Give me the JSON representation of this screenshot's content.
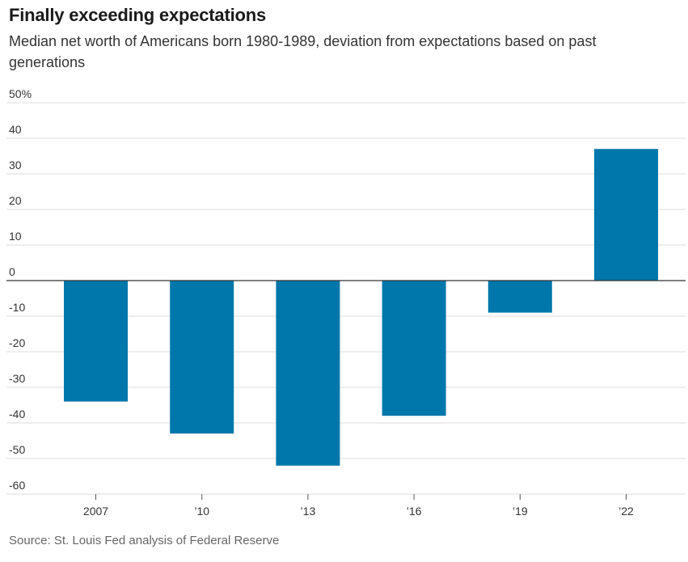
{
  "title": "Finally exceeding expectations",
  "subtitle": "Median net worth of Americans born 1980-1989, deviation from expectations based on past generations",
  "source": "Source: St. Louis Fed analysis of Federal Reserve",
  "colors": {
    "bar": "#0077aa",
    "grid": "#dddddd",
    "zero_line": "#333333"
  },
  "chart_data": {
    "type": "bar",
    "title": "Finally exceeding expectations",
    "subtitle": "Median net worth of Americans born 1980-1989, deviation from expectations based on past generations",
    "categories": [
      "2007",
      "’10",
      "’13",
      "’16",
      "’19",
      "’22"
    ],
    "values": [
      -34,
      -43,
      -52,
      -38,
      -9,
      37
    ],
    "y_ticks": [
      50,
      40,
      30,
      20,
      10,
      0,
      -10,
      -20,
      -30,
      -40,
      -50,
      -60
    ],
    "y_tick_labels": [
      "50%",
      "40",
      "30",
      "20",
      "10",
      "0",
      "-10",
      "-20",
      "-30",
      "-40",
      "-50",
      "-60"
    ],
    "ylim": [
      -60,
      50
    ],
    "grid": true,
    "legend": "none"
  }
}
